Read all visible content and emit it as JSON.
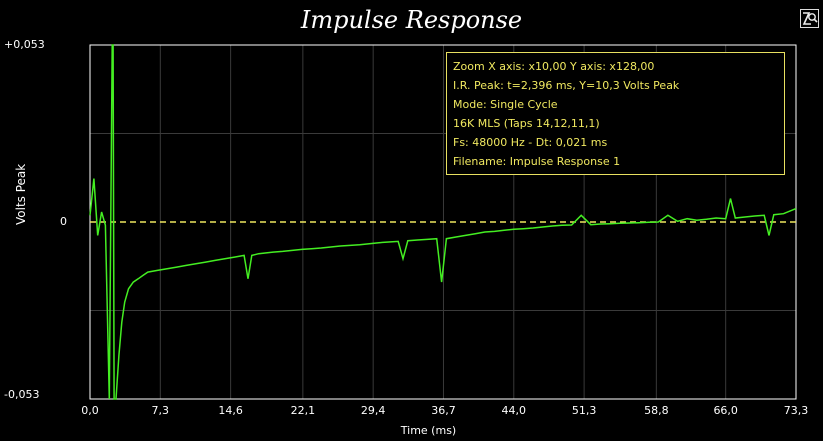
{
  "window": {
    "title": "Impulse Response",
    "zoom_icon": "magnify-zoom-icon"
  },
  "info_box": {
    "lines": [
      "Zoom X axis: x10,00    Y axis: x128,00",
      "I.R. Peak: t=2,396 ms,  Y=10,3 Volts Peak",
      "Mode: Single Cycle",
      "16K   MLS  (Taps 14,12,11,1)",
      "Fs: 48000 Hz - Dt: 0,021 ms",
      "Filename: Impulse Response 1"
    ]
  },
  "chart_data": {
    "type": "line",
    "title": "Impulse Response",
    "xlabel": "Time (ms)",
    "ylabel": "Volts Peak",
    "y_tick_labels": [
      "+0,053",
      "0",
      "-0,053"
    ],
    "y_ticks": [
      0.053,
      0,
      -0.053
    ],
    "x_tick_labels": [
      "0,0",
      "7,3",
      "14,6",
      "22,1",
      "29,4",
      "36,7",
      "44,0",
      "51,3",
      "58,8",
      "66,0",
      "73,3"
    ],
    "x_ticks": [
      0,
      7.3,
      14.6,
      22.1,
      29.4,
      36.7,
      44.0,
      51.3,
      58.8,
      66.0,
      73.3
    ],
    "xlim": [
      0,
      73.3
    ],
    "ylim": [
      -0.053,
      0.053
    ],
    "grid": true,
    "colors": {
      "trace": "#44ee22",
      "zero_line": "#f0e860",
      "grid": "#3a3a3a",
      "frame": "#ffffff"
    },
    "series": [
      {
        "x": [
          0,
          0.4,
          0.8,
          1.2,
          1.6,
          2.0,
          2.3,
          2.396,
          2.5,
          2.7,
          3.0,
          3.3,
          3.6,
          4.0,
          4.5,
          5.0,
          5.5,
          6.0,
          7.0,
          8.0,
          9.0,
          10.0,
          11.0,
          12.0,
          13.0,
          14.0,
          15.0,
          16.0,
          16.4,
          16.8,
          17.5,
          19.0,
          20.0,
          21.0,
          22.0,
          23.0,
          24.0,
          25.0,
          26.0,
          27.0,
          28.0,
          29.0,
          30.0,
          31.0,
          32.0,
          32.5,
          33.0,
          34.0,
          35.0,
          36.0,
          36.5,
          37.0,
          38.0,
          39.0,
          40.0,
          41.0,
          42.0,
          43.0,
          44.0,
          45.0,
          46.0,
          47.0,
          48.0,
          49.0,
          50.0,
          51.0,
          52.0,
          53.0,
          54.0,
          55.0,
          56.0,
          57.0,
          58.0,
          59.0,
          60.0,
          61.0,
          62.0,
          63.0,
          64.0,
          65.0,
          66.0,
          66.5,
          67.0,
          68.0,
          69.0,
          70.0,
          70.5,
          71.0,
          72.0,
          73.3
        ],
        "y": [
          0.002,
          0.013,
          -0.004,
          0.003,
          -0.001,
          -0.053,
          0.053,
          0.053,
          -0.053,
          -0.053,
          -0.04,
          -0.03,
          -0.024,
          -0.02,
          -0.018,
          -0.017,
          -0.016,
          -0.015,
          -0.0145,
          -0.014,
          -0.0135,
          -0.013,
          -0.0125,
          -0.012,
          -0.0115,
          -0.011,
          -0.0105,
          -0.01,
          -0.017,
          -0.01,
          -0.0095,
          -0.009,
          -0.0088,
          -0.0085,
          -0.0082,
          -0.008,
          -0.0078,
          -0.0075,
          -0.0072,
          -0.007,
          -0.0068,
          -0.0065,
          -0.0062,
          -0.006,
          -0.0058,
          -0.011,
          -0.0056,
          -0.0054,
          -0.0052,
          -0.005,
          -0.018,
          -0.005,
          -0.0045,
          -0.004,
          -0.0035,
          -0.003,
          -0.0028,
          -0.0025,
          -0.0022,
          -0.002,
          -0.0018,
          -0.0015,
          -0.0012,
          -0.001,
          -0.0009,
          0.002,
          -0.0008,
          -0.0006,
          -0.0005,
          -0.0004,
          -0.0003,
          -0.0002,
          -0.0001,
          0.0,
          0.002,
          0.0002,
          0.001,
          0.0005,
          0.0008,
          0.0012,
          0.001,
          0.007,
          0.0012,
          0.0015,
          0.0018,
          0.002,
          -0.004,
          0.0022,
          0.0025,
          0.004
        ]
      }
    ]
  }
}
